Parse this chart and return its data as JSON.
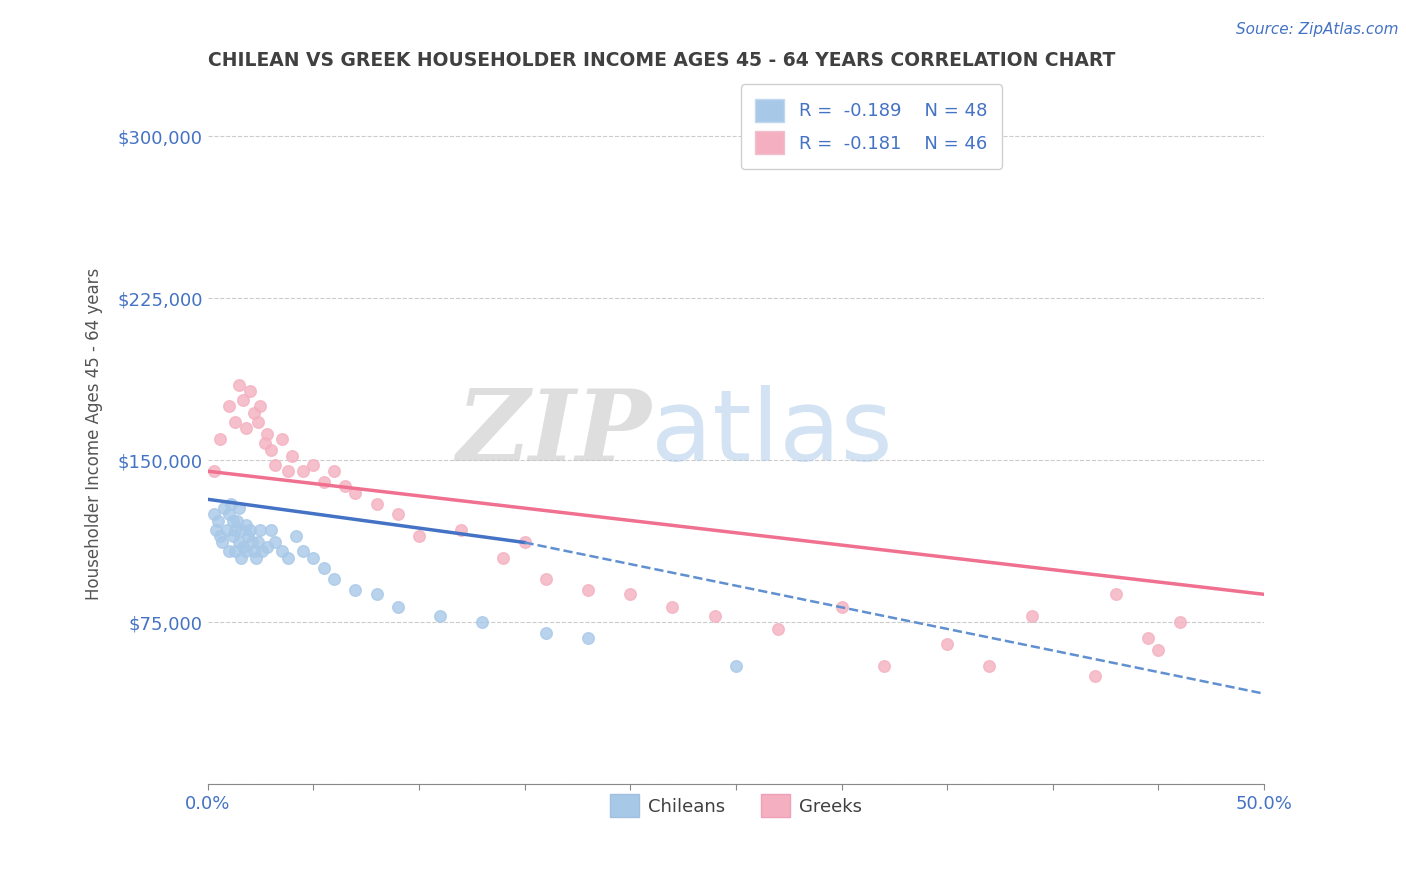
{
  "title": "CHILEAN VS GREEK HOUSEHOLDER INCOME AGES 45 - 64 YEARS CORRELATION CHART",
  "source_text": "Source: ZipAtlas.com",
  "ylabel": "Householder Income Ages 45 - 64 years",
  "xlim": [
    0.0,
    0.5
  ],
  "ylim": [
    0,
    325000
  ],
  "yticks": [
    0,
    75000,
    150000,
    225000,
    300000
  ],
  "ytick_labels": [
    "",
    "$75,000",
    "$150,000",
    "$225,000",
    "$300,000"
  ],
  "xticks": [
    0.0,
    0.05,
    0.1,
    0.15,
    0.2,
    0.25,
    0.3,
    0.35,
    0.4,
    0.45,
    0.5
  ],
  "xtick_labels": [
    "0.0%",
    "",
    "",
    "",
    "",
    "",
    "",
    "",
    "",
    "",
    "50.0%"
  ],
  "axis_color": "#4472c4",
  "title_color": "#404040",
  "bg_color": "#ffffff",
  "grid_color": "#c0c0c0",
  "legend_r1": "R =  -0.189",
  "legend_n1": "N = 48",
  "legend_r2": "R =  -0.181",
  "legend_n2": "N = 46",
  "chilean_color": "#a8c8e8",
  "greek_color": "#f4b0c0",
  "chilean_line_color": "#4472c4",
  "greek_line_color": "#f07090",
  "dashed_line_color": "#6090d0",
  "chilean_scatter_x": [
    0.003,
    0.004,
    0.005,
    0.006,
    0.007,
    0.008,
    0.009,
    0.01,
    0.01,
    0.011,
    0.012,
    0.012,
    0.013,
    0.013,
    0.014,
    0.015,
    0.015,
    0.016,
    0.016,
    0.017,
    0.018,
    0.018,
    0.019,
    0.02,
    0.021,
    0.022,
    0.023,
    0.024,
    0.025,
    0.026,
    0.028,
    0.03,
    0.032,
    0.035,
    0.038,
    0.042,
    0.045,
    0.05,
    0.055,
    0.06,
    0.07,
    0.08,
    0.09,
    0.11,
    0.13,
    0.16,
    0.18,
    0.25
  ],
  "chilean_scatter_y": [
    125000,
    118000,
    122000,
    115000,
    112000,
    128000,
    118000,
    125000,
    108000,
    130000,
    122000,
    115000,
    118000,
    108000,
    122000,
    128000,
    112000,
    118000,
    105000,
    110000,
    120000,
    108000,
    115000,
    118000,
    112000,
    108000,
    105000,
    112000,
    118000,
    108000,
    110000,
    118000,
    112000,
    108000,
    105000,
    115000,
    108000,
    105000,
    100000,
    95000,
    90000,
    88000,
    82000,
    78000,
    75000,
    70000,
    68000,
    55000
  ],
  "greek_scatter_x": [
    0.003,
    0.006,
    0.01,
    0.013,
    0.015,
    0.017,
    0.018,
    0.02,
    0.022,
    0.024,
    0.025,
    0.027,
    0.028,
    0.03,
    0.032,
    0.035,
    0.038,
    0.04,
    0.045,
    0.05,
    0.055,
    0.06,
    0.065,
    0.07,
    0.08,
    0.09,
    0.1,
    0.12,
    0.14,
    0.15,
    0.16,
    0.18,
    0.2,
    0.22,
    0.24,
    0.27,
    0.3,
    0.32,
    0.35,
    0.37,
    0.39,
    0.42,
    0.43,
    0.445,
    0.45,
    0.46
  ],
  "greek_scatter_y": [
    145000,
    160000,
    175000,
    168000,
    185000,
    178000,
    165000,
    182000,
    172000,
    168000,
    175000,
    158000,
    162000,
    155000,
    148000,
    160000,
    145000,
    152000,
    145000,
    148000,
    140000,
    145000,
    138000,
    135000,
    130000,
    125000,
    115000,
    118000,
    105000,
    112000,
    95000,
    90000,
    88000,
    82000,
    78000,
    72000,
    82000,
    55000,
    65000,
    55000,
    78000,
    50000,
    88000,
    68000,
    62000,
    75000
  ],
  "chilean_trend_x": [
    0.0,
    0.15
  ],
  "chilean_trend_y": [
    132000,
    112000
  ],
  "greek_trend_x": [
    0.0,
    0.5
  ],
  "greek_trend_y": [
    145000,
    88000
  ],
  "dashed_trend_x": [
    0.15,
    0.5
  ],
  "dashed_trend_y": [
    112000,
    42000
  ]
}
